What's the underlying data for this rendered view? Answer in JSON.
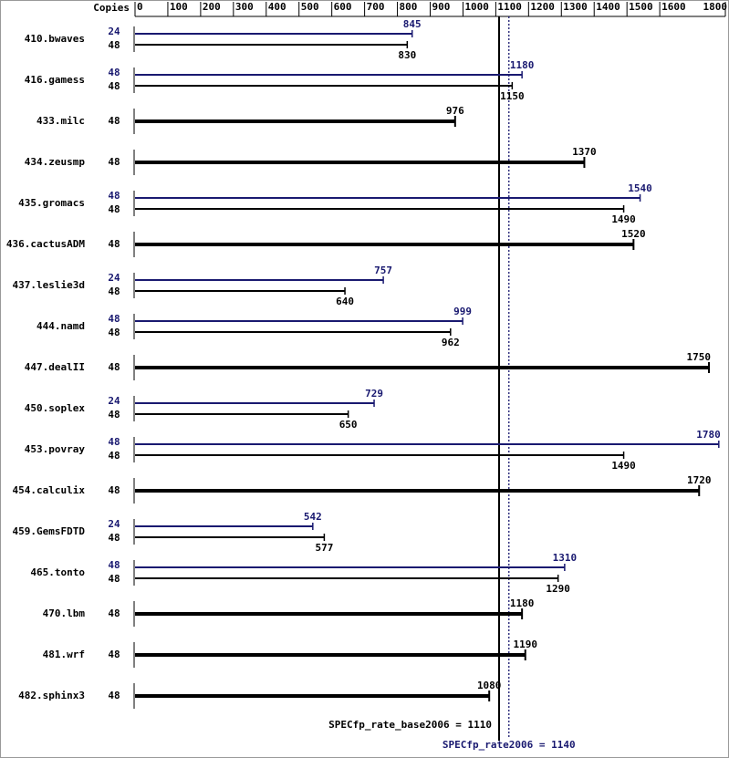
{
  "chart_data": {
    "type": "bar",
    "orientation": "horizontal",
    "copies_label": "Copies",
    "categories": [
      "410.bwaves",
      "416.gamess",
      "433.milc",
      "434.zeusmp",
      "435.gromacs",
      "436.cactusADM",
      "437.leslie3d",
      "444.namd",
      "447.dealII",
      "450.soplex",
      "453.povray",
      "454.calculix",
      "459.GemsFDTD",
      "465.tonto",
      "470.lbm",
      "481.wrf",
      "482.sphinx3"
    ],
    "base": {
      "color": "#000000",
      "copies": [
        48,
        48,
        48,
        48,
        48,
        48,
        48,
        48,
        48,
        48,
        48,
        48,
        48,
        48,
        48,
        48,
        48
      ],
      "values": [
        830,
        1150,
        976,
        1370,
        1490,
        1520,
        640,
        962,
        1750,
        650,
        1490,
        1720,
        577,
        1290,
        1180,
        1190,
        1080
      ]
    },
    "peak": {
      "color": "#191970",
      "copies": [
        24,
        48,
        null,
        null,
        48,
        null,
        24,
        48,
        null,
        24,
        48,
        null,
        24,
        48,
        null,
        null,
        null
      ],
      "values": [
        845,
        1180,
        null,
        null,
        1540,
        null,
        757,
        999,
        null,
        729,
        1780,
        null,
        542,
        1310,
        null,
        null,
        null
      ]
    },
    "xlim": [
      0,
      1800
    ],
    "xticks": [
      0,
      100,
      200,
      300,
      400,
      500,
      600,
      700,
      800,
      900,
      1000,
      1100,
      1200,
      1300,
      1400,
      1500,
      1600,
      1800
    ],
    "reference_lines": [
      {
        "label": "SPECfp_rate_base2006 = 1110",
        "value": 1110,
        "color": "#000000",
        "style": "solid"
      },
      {
        "label": "SPECfp_rate2006 = 1140",
        "value": 1140,
        "color": "#191970",
        "style": "dotted"
      }
    ]
  }
}
